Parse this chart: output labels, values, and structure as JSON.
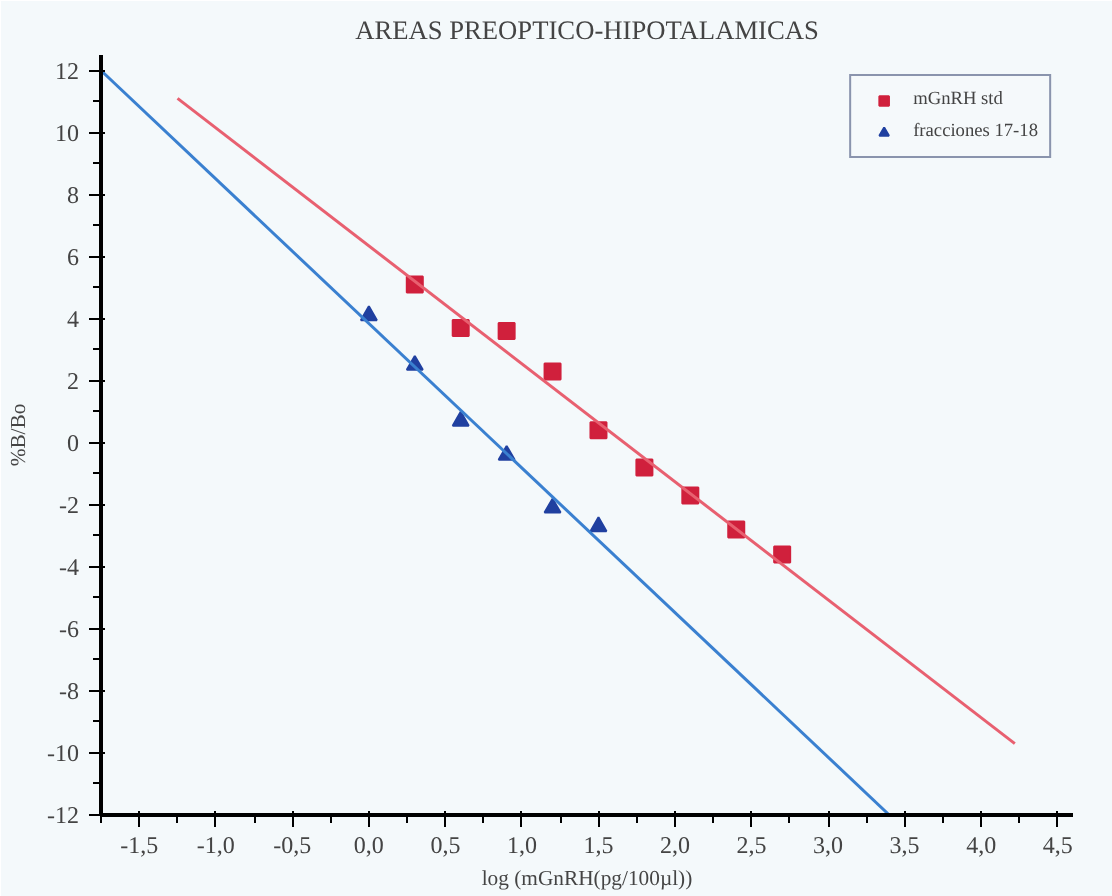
{
  "chart_data": {
    "type": "scatter",
    "title": "AREAS PREOPTICO-HIPOTALAMICAS",
    "xlabel": "log (mGnRH(pg/100µl))",
    "ylabel": "%B/Bo",
    "xlim": [
      -1.75,
      4.6
    ],
    "ylim": [
      -12,
      12.5
    ],
    "xticks": [
      {
        "value": -1.5,
        "label": "-1,5"
      },
      {
        "value": -1.0,
        "label": "-1,0"
      },
      {
        "value": -0.5,
        "label": "-0,5"
      },
      {
        "value": 0.0,
        "label": "0,0"
      },
      {
        "value": 0.5,
        "label": "0,5"
      },
      {
        "value": 1.0,
        "label": "1,0"
      },
      {
        "value": 1.5,
        "label": "1,5"
      },
      {
        "value": 2.0,
        "label": "2,0"
      },
      {
        "value": 2.5,
        "label": "2,5"
      },
      {
        "value": 3.0,
        "label": "3,0"
      },
      {
        "value": 3.5,
        "label": "3,5"
      },
      {
        "value": 4.0,
        "label": "4,0"
      },
      {
        "value": 4.5,
        "label": "4,5"
      }
    ],
    "yticks": [
      -12,
      -10,
      -8,
      -6,
      -4,
      -2,
      0,
      2,
      4,
      6,
      8,
      10,
      12
    ],
    "grid": false,
    "legend": "top right",
    "series": [
      {
        "name": "mGnRH std",
        "type": "scatter",
        "marker": "square",
        "color": "#d0203c",
        "x": [
          0.3,
          0.6,
          0.9,
          1.2,
          1.5,
          1.8,
          2.1,
          2.4,
          2.7
        ],
        "values": [
          5.1,
          3.7,
          3.6,
          2.3,
          0.4,
          -0.8,
          -1.7,
          -2.8,
          -3.6
        ]
      },
      {
        "name": "fracciones 17-18",
        "type": "scatter",
        "marker": "triangle",
        "color": "#2040a0",
        "x": [
          0.0,
          0.3,
          0.6,
          0.9,
          1.2,
          1.5
        ],
        "values": [
          4.1,
          2.5,
          0.7,
          -0.4,
          -2.1,
          -2.7
        ]
      },
      {
        "type": "line",
        "color": "#e86070",
        "x": [
          -1.25,
          4.22
        ],
        "values": [
          11.1,
          -9.7
        ]
      },
      {
        "type": "line",
        "color": "#3a80d0",
        "x": [
          -1.75,
          3.4
        ],
        "values": [
          12,
          -12
        ]
      }
    ]
  }
}
